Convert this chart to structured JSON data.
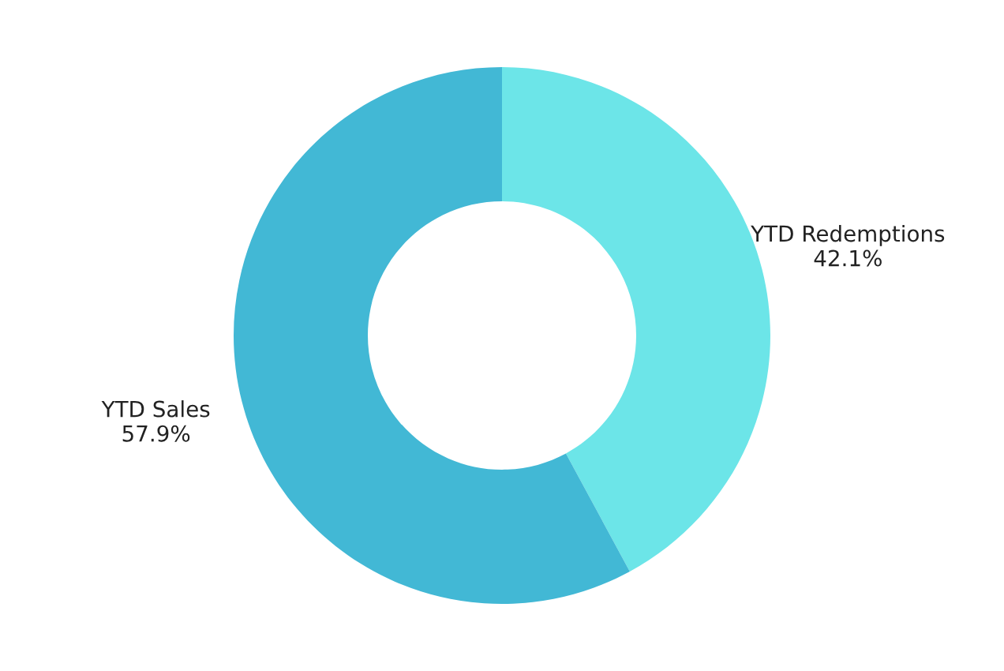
{
  "chart_data": {
    "type": "donut",
    "categories": [
      "YTD Redemptions",
      "YTD Sales"
    ],
    "values": [
      42.1,
      57.9
    ],
    "colors": [
      "#6ce5e8",
      "#42b8d5"
    ],
    "value_labels": [
      "42.1%",
      "57.9%"
    ],
    "legend": false
  }
}
